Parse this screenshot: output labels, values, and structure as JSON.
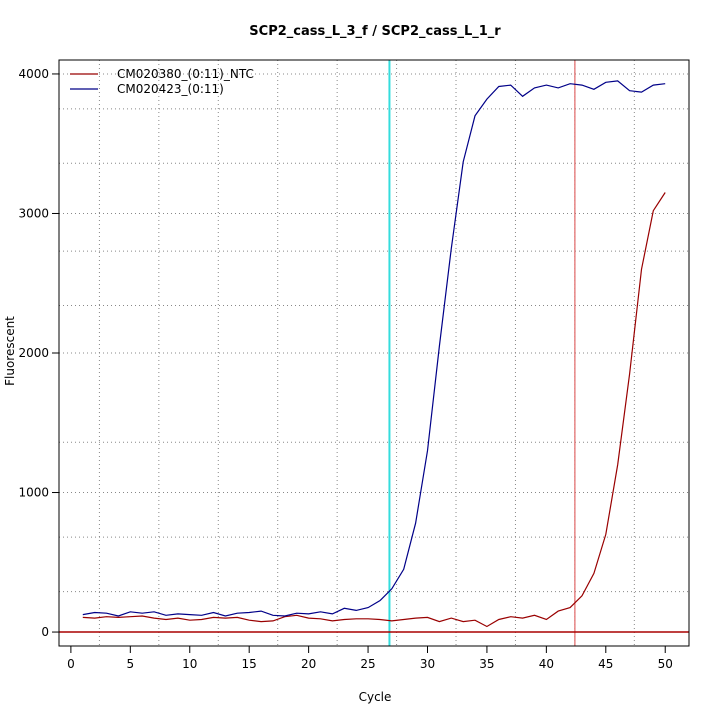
{
  "chart_data": {
    "type": "line",
    "title": "SCP2_cass_L_3_f / SCP2_cass_L_1_r",
    "xlabel": "Cycle",
    "ylabel": "Fluorescent",
    "xlim": [
      -1,
      52
    ],
    "ylim": [
      -100,
      4100
    ],
    "x_ticks": [
      0,
      5,
      10,
      15,
      20,
      25,
      30,
      35,
      40,
      45,
      50
    ],
    "y_ticks": [
      0,
      1000,
      2000,
      3000,
      4000
    ],
    "grid": "dotted",
    "grid_x": [
      2.4,
      7.4,
      12.4,
      17.4,
      22.4,
      27.4,
      32.4,
      37.4,
      42.4,
      47.4
    ],
    "grid_y": [
      0,
      290,
      680,
      1000,
      1360,
      2000,
      2340,
      2730,
      3000,
      3360,
      3750,
      4000
    ],
    "threshold": {
      "y": 0,
      "color": "#aa0000"
    },
    "vlines": [
      {
        "x": 26.8,
        "color": "#33dddd"
      },
      {
        "x": 42.4,
        "color": "#e06666"
      }
    ],
    "legend_position": "top-left",
    "x": [
      1,
      2,
      3,
      4,
      5,
      6,
      7,
      8,
      9,
      10,
      11,
      12,
      13,
      14,
      15,
      16,
      17,
      18,
      19,
      20,
      21,
      22,
      23,
      24,
      25,
      26,
      27,
      28,
      29,
      30,
      31,
      32,
      33,
      34,
      35,
      36,
      37,
      38,
      39,
      40,
      41,
      42,
      43,
      44,
      45,
      46,
      47,
      48,
      49,
      50
    ],
    "series": [
      {
        "name": "CM020380_(0:11)_NTC",
        "color": "#990000",
        "values": [
          105,
          100,
          110,
          105,
          110,
          115,
          100,
          90,
          100,
          85,
          90,
          105,
          100,
          105,
          85,
          75,
          80,
          110,
          120,
          100,
          95,
          80,
          90,
          95,
          95,
          90,
          80,
          90,
          100,
          105,
          75,
          100,
          75,
          85,
          40,
          90,
          110,
          100,
          120,
          90,
          150,
          175,
          260,
          420,
          700,
          1200,
          1850,
          2600,
          3020,
          3150
        ]
      },
      {
        "name": "CM020423_(0:11)",
        "color": "#000088",
        "values": [
          125,
          140,
          135,
          115,
          145,
          135,
          145,
          120,
          130,
          125,
          120,
          140,
          115,
          135,
          140,
          150,
          120,
          115,
          135,
          130,
          145,
          130,
          170,
          155,
          175,
          225,
          310,
          450,
          780,
          1300,
          2050,
          2750,
          3370,
          3700,
          3820,
          3910,
          3920,
          3840,
          3900,
          3920,
          3900,
          3930,
          3920,
          3890,
          3940,
          3950,
          3880,
          3870,
          3920,
          3930
        ]
      }
    ]
  }
}
